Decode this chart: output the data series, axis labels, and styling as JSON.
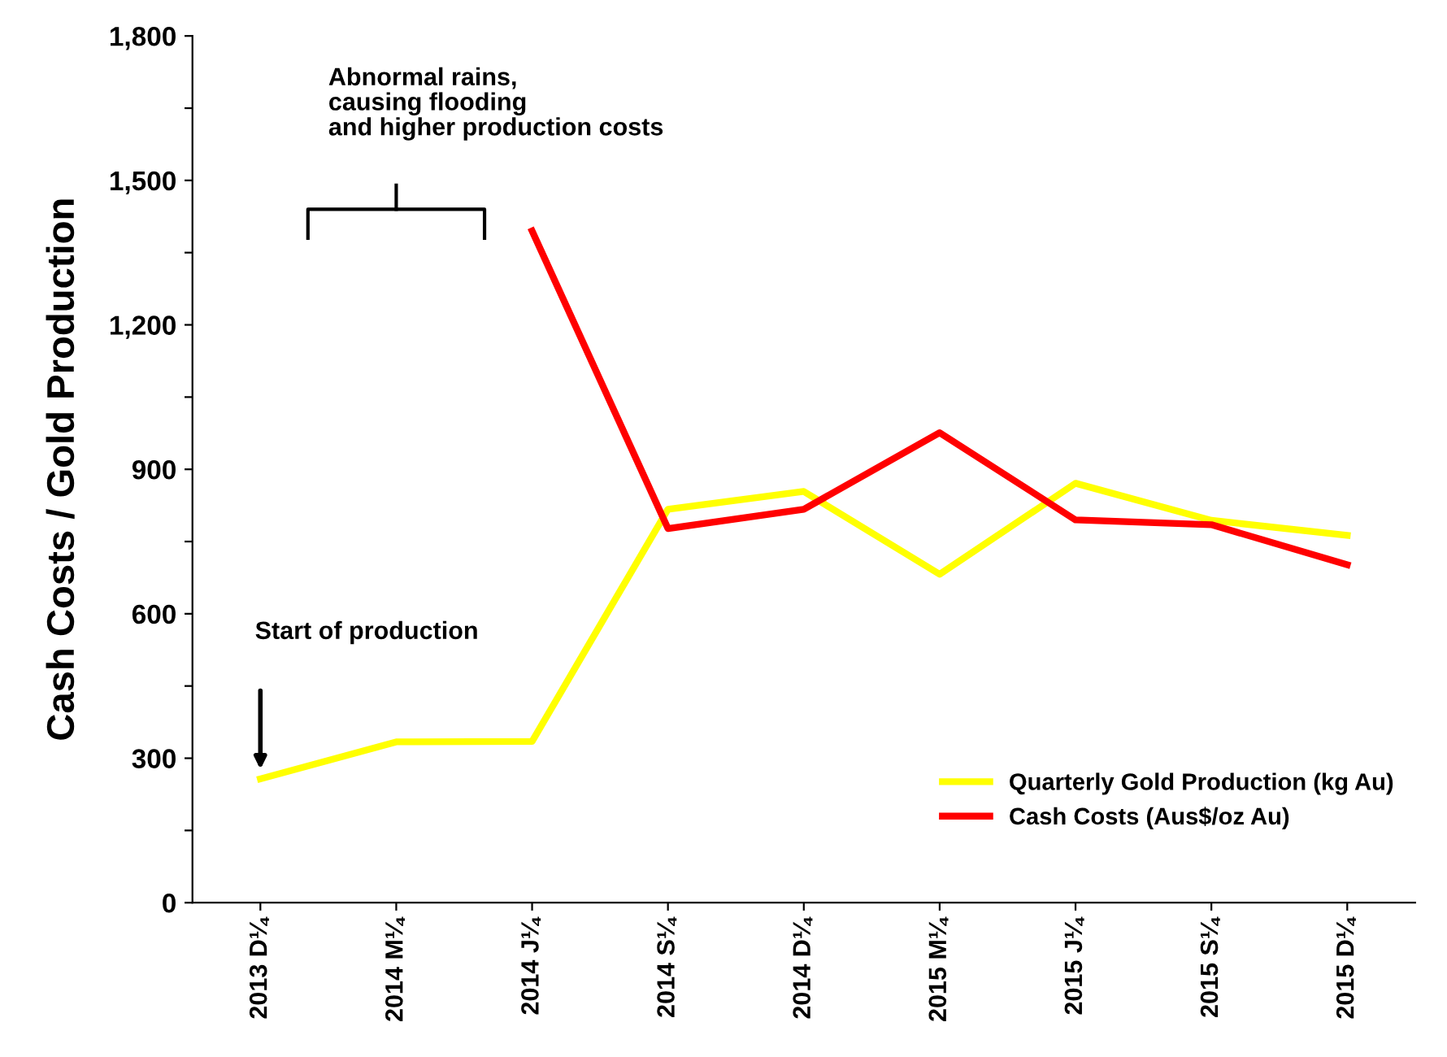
{
  "chart_data": {
    "type": "line",
    "ylabel": "Cash Costs / Gold Production",
    "categories": [
      "2013 D¼",
      "2014 M¼",
      "2014 J¼",
      "2014 S¼",
      "2014 D¼",
      "2015 M¼",
      "2015 J¼",
      "2015 S¼",
      "2015 D¼"
    ],
    "series": [
      {
        "name": "Quarterly Gold Production (kg Au)",
        "color": "#ffff00",
        "values": [
          257,
          334,
          335,
          817,
          854,
          682,
          871,
          794,
          763
        ]
      },
      {
        "name": "Cash Costs (Aus$/oz Au)",
        "color": "#ff0000",
        "values": [
          null,
          null,
          1395,
          777,
          817,
          976,
          795,
          785,
          702
        ]
      }
    ],
    "ylim": [
      0,
      1800
    ],
    "yticks": [
      0,
      {
        "value": 150,
        "label": null
      },
      {
        "value": 300,
        "label": "300"
      },
      {
        "value": 450,
        "label": null
      },
      600,
      {
        "value": 750,
        "label": null
      },
      900,
      {
        "value": 1050,
        "label": null
      },
      {
        "value": 1200,
        "label": "1,200"
      },
      {
        "value": 1350,
        "label": null
      },
      {
        "value": 1500,
        "label": "1,500"
      },
      {
        "value": 1650,
        "label": null
      },
      {
        "value": 1800,
        "label": "1,800"
      }
    ],
    "grid": false,
    "legend": "bottom right",
    "marker": "none",
    "line_style": "solid",
    "annotations": [
      "Abnormal rains,\ncausing flooding\nand higher production costs",
      "Start of production"
    ]
  }
}
